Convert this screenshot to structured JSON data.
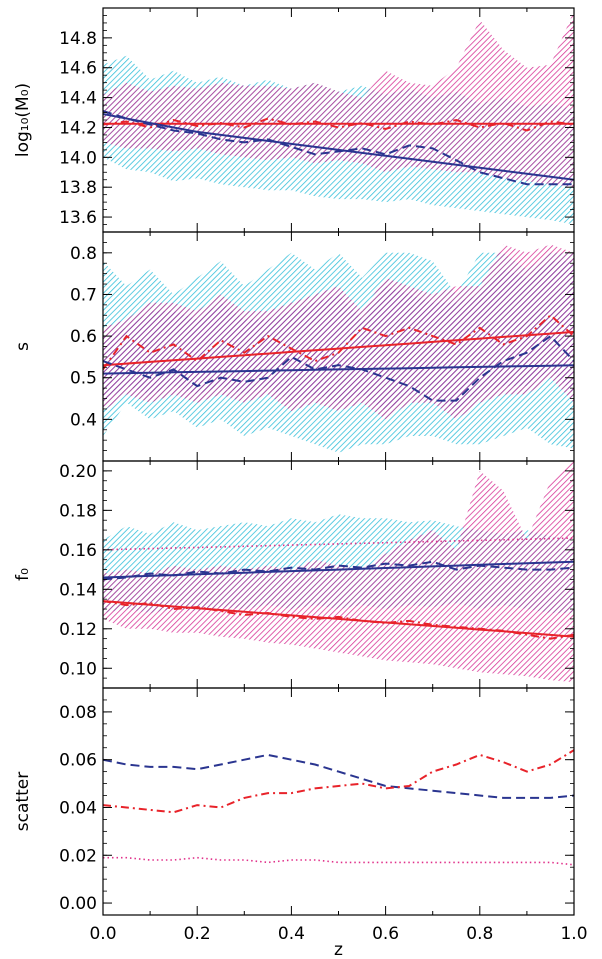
{
  "colors": {
    "cyan_band": "#1fb9d6",
    "magenta_band": "#d4218c",
    "overlap": "#8a3aa0",
    "blue_line": "#2a3590",
    "red_line": "#e8232a",
    "pink_dotted": "#e0308a"
  },
  "chart_data": [
    {
      "type": "area",
      "ylabel": "log₁₀(M₀)",
      "xlim": [
        0.0,
        1.0
      ],
      "ylim": [
        13.5,
        15.0
      ],
      "yticks": [
        "13.6",
        "13.8",
        "14.0",
        "14.2",
        "14.4",
        "14.6",
        "14.8"
      ],
      "x": [
        0.0,
        0.05,
        0.1,
        0.15,
        0.2,
        0.25,
        0.3,
        0.35,
        0.4,
        0.45,
        0.5,
        0.55,
        0.6,
        0.65,
        0.7,
        0.75,
        0.8,
        0.85,
        0.9,
        0.95,
        1.0
      ],
      "bands": [
        {
          "color": "cyan",
          "upper": [
            14.62,
            14.68,
            14.52,
            14.58,
            14.5,
            14.54,
            14.48,
            14.52,
            14.46,
            14.5,
            14.44,
            14.48,
            14.42,
            14.46,
            14.4,
            14.44,
            14.36,
            14.4,
            14.34,
            14.36,
            14.32
          ],
          "lower": [
            14.0,
            13.92,
            13.9,
            13.84,
            13.86,
            13.82,
            13.8,
            13.78,
            13.78,
            13.74,
            13.72,
            13.72,
            13.7,
            13.72,
            13.68,
            13.66,
            13.64,
            13.62,
            13.6,
            13.58,
            13.55
          ]
        },
        {
          "color": "magenta",
          "upper": [
            14.42,
            14.5,
            14.44,
            14.48,
            14.46,
            14.5,
            14.48,
            14.48,
            14.46,
            14.5,
            14.44,
            14.4,
            14.58,
            14.5,
            14.48,
            14.6,
            14.92,
            14.72,
            14.6,
            14.62,
            14.98
          ],
          "lower": [
            14.1,
            14.06,
            14.06,
            14.04,
            14.06,
            14.02,
            14.0,
            13.98,
            14.0,
            13.96,
            13.98,
            13.96,
            13.9,
            13.94,
            13.92,
            13.9,
            13.9,
            13.86,
            13.84,
            13.82,
            13.8
          ]
        }
      ],
      "series": [
        {
          "style": "red-solid",
          "values": [
            14.225,
            14.225,
            14.225,
            14.225,
            14.225,
            14.225,
            14.225,
            14.225,
            14.225,
            14.225,
            14.225,
            14.225,
            14.225,
            14.225,
            14.225,
            14.225,
            14.225,
            14.225,
            14.225,
            14.225,
            14.225
          ]
        },
        {
          "style": "red-dashdot",
          "values": [
            14.22,
            14.24,
            14.2,
            14.25,
            14.21,
            14.23,
            14.2,
            14.26,
            14.22,
            14.24,
            14.2,
            14.23,
            14.19,
            14.24,
            14.22,
            14.25,
            14.2,
            14.23,
            14.18,
            14.24,
            14.22
          ]
        },
        {
          "style": "blue-dashed",
          "values": [
            14.31,
            14.26,
            14.22,
            14.18,
            14.16,
            14.12,
            14.1,
            14.12,
            14.07,
            14.02,
            14.04,
            14.06,
            14.02,
            14.08,
            14.06,
            13.98,
            13.9,
            13.86,
            13.82,
            13.82,
            13.82
          ]
        },
        {
          "style": "blue-solid",
          "values": [
            14.29,
            14.26,
            14.23,
            14.2,
            14.17,
            14.15,
            14.13,
            14.11,
            14.09,
            14.07,
            14.05,
            14.03,
            14.01,
            13.99,
            13.97,
            13.95,
            13.93,
            13.91,
            13.89,
            13.87,
            13.85
          ]
        }
      ]
    },
    {
      "type": "area",
      "ylabel": "s",
      "xlim": [
        0.0,
        1.0
      ],
      "ylim": [
        0.3,
        0.85
      ],
      "yticks": [
        "0.4",
        "0.5",
        "0.6",
        "0.7",
        "0.8"
      ],
      "x": [
        0.0,
        0.05,
        0.1,
        0.15,
        0.2,
        0.25,
        0.3,
        0.35,
        0.4,
        0.45,
        0.5,
        0.55,
        0.6,
        0.65,
        0.7,
        0.75,
        0.8,
        0.85,
        0.9,
        0.95,
        1.0
      ],
      "bands": [
        {
          "color": "cyan",
          "upper": [
            0.78,
            0.72,
            0.76,
            0.7,
            0.74,
            0.78,
            0.72,
            0.76,
            0.8,
            0.76,
            0.8,
            0.74,
            0.8,
            0.8,
            0.78,
            0.7,
            0.8,
            0.8,
            0.76,
            0.8,
            0.8
          ],
          "lower": [
            0.36,
            0.44,
            0.4,
            0.42,
            0.38,
            0.4,
            0.36,
            0.38,
            0.36,
            0.34,
            0.32,
            0.34,
            0.34,
            0.36,
            0.36,
            0.34,
            0.34,
            0.36,
            0.38,
            0.34,
            0.33
          ]
        },
        {
          "color": "magenta",
          "upper": [
            0.62,
            0.64,
            0.68,
            0.68,
            0.66,
            0.7,
            0.66,
            0.66,
            0.68,
            0.7,
            0.72,
            0.66,
            0.74,
            0.72,
            0.7,
            0.72,
            0.72,
            0.82,
            0.8,
            0.82,
            0.8
          ],
          "lower": [
            0.42,
            0.46,
            0.44,
            0.46,
            0.44,
            0.46,
            0.44,
            0.46,
            0.42,
            0.44,
            0.42,
            0.44,
            0.4,
            0.44,
            0.44,
            0.4,
            0.44,
            0.46,
            0.46,
            0.5,
            0.44
          ]
        },
        {
          "color": "overlap",
          "upper": [
            0.6,
            0.62,
            0.66,
            0.66,
            0.64,
            0.68,
            0.64,
            0.64,
            0.66,
            0.68,
            0.7,
            0.64,
            0.72,
            0.7,
            0.68,
            0.68,
            0.7,
            0.76,
            0.74,
            0.78,
            0.78
          ],
          "lower": [
            0.44,
            0.48,
            0.46,
            0.48,
            0.46,
            0.48,
            0.46,
            0.48,
            0.44,
            0.46,
            0.44,
            0.46,
            0.42,
            0.46,
            0.46,
            0.42,
            0.46,
            0.48,
            0.48,
            0.52,
            0.46
          ]
        }
      ],
      "series": [
        {
          "style": "red-solid",
          "values": [
            0.53,
            0.534,
            0.538,
            0.542,
            0.546,
            0.55,
            0.554,
            0.558,
            0.562,
            0.566,
            0.57,
            0.574,
            0.578,
            0.582,
            0.586,
            0.59,
            0.594,
            0.598,
            0.602,
            0.606,
            0.61
          ]
        },
        {
          "style": "red-dashdot",
          "values": [
            0.52,
            0.6,
            0.56,
            0.58,
            0.54,
            0.59,
            0.56,
            0.6,
            0.57,
            0.54,
            0.56,
            0.62,
            0.6,
            0.62,
            0.6,
            0.58,
            0.62,
            0.58,
            0.6,
            0.65,
            0.6
          ]
        },
        {
          "style": "blue-dashed",
          "values": [
            0.54,
            0.52,
            0.5,
            0.52,
            0.48,
            0.5,
            0.49,
            0.5,
            0.55,
            0.52,
            0.53,
            0.52,
            0.5,
            0.48,
            0.445,
            0.445,
            0.5,
            0.54,
            0.56,
            0.6,
            0.54
          ]
        },
        {
          "style": "blue-solid",
          "values": [
            0.51,
            0.511,
            0.512,
            0.513,
            0.514,
            0.515,
            0.516,
            0.517,
            0.518,
            0.519,
            0.52,
            0.521,
            0.522,
            0.523,
            0.524,
            0.525,
            0.526,
            0.527,
            0.528,
            0.529,
            0.53
          ]
        }
      ]
    },
    {
      "type": "area",
      "ylabel": "f₀",
      "xlim": [
        0.0,
        1.0
      ],
      "ylim": [
        0.09,
        0.205
      ],
      "yticks": [
        "0.10",
        "0.12",
        "0.14",
        "0.16",
        "0.18",
        "0.20"
      ],
      "x": [
        0.0,
        0.05,
        0.1,
        0.15,
        0.2,
        0.25,
        0.3,
        0.35,
        0.4,
        0.45,
        0.5,
        0.55,
        0.6,
        0.65,
        0.7,
        0.75,
        0.8,
        0.85,
        0.9,
        0.95,
        1.0
      ],
      "bands": [
        {
          "color": "cyan",
          "upper": [
            0.165,
            0.172,
            0.168,
            0.174,
            0.17,
            0.172,
            0.174,
            0.172,
            0.176,
            0.174,
            0.178,
            0.176,
            0.176,
            0.174,
            0.175,
            0.172,
            0.17,
            0.168,
            0.17,
            0.167,
            0.165
          ],
          "lower": [
            0.128,
            0.13,
            0.128,
            0.13,
            0.129,
            0.131,
            0.13,
            0.132,
            0.13,
            0.132,
            0.13,
            0.132,
            0.13,
            0.132,
            0.131,
            0.133,
            0.13,
            0.132,
            0.13,
            0.128,
            0.128
          ]
        },
        {
          "color": "magenta",
          "upper": [
            0.148,
            0.15,
            0.148,
            0.152,
            0.15,
            0.152,
            0.15,
            0.152,
            0.15,
            0.155,
            0.152,
            0.15,
            0.158,
            0.165,
            0.17,
            0.16,
            0.2,
            0.19,
            0.165,
            0.195,
            0.205
          ],
          "lower": [
            0.125,
            0.12,
            0.12,
            0.118,
            0.118,
            0.116,
            0.115,
            0.113,
            0.112,
            0.11,
            0.108,
            0.106,
            0.104,
            0.103,
            0.102,
            0.1,
            0.098,
            0.097,
            0.096,
            0.094,
            0.093
          ]
        }
      ],
      "series": [
        {
          "style": "pink-dotted",
          "values": [
            0.16,
            0.1603,
            0.1606,
            0.1609,
            0.1612,
            0.1615,
            0.1618,
            0.1621,
            0.1624,
            0.1627,
            0.163,
            0.1633,
            0.1636,
            0.1639,
            0.1642,
            0.1645,
            0.1648,
            0.1651,
            0.1654,
            0.1657,
            0.166
          ]
        },
        {
          "style": "red-dashdot",
          "values": [
            0.134,
            0.132,
            0.133,
            0.13,
            0.131,
            0.129,
            0.127,
            0.128,
            0.126,
            0.125,
            0.126,
            0.124,
            0.123,
            0.124,
            0.122,
            0.121,
            0.12,
            0.119,
            0.117,
            0.115,
            0.117
          ]
        },
        {
          "style": "red-solid",
          "values": [
            0.134,
            0.1331,
            0.1322,
            0.1313,
            0.1304,
            0.1295,
            0.1286,
            0.1277,
            0.1268,
            0.1259,
            0.125,
            0.1241,
            0.1232,
            0.1223,
            0.1214,
            0.1205,
            0.1196,
            0.1187,
            0.1178,
            0.1169,
            0.116
          ]
        },
        {
          "style": "blue-dashed",
          "values": [
            0.145,
            0.146,
            0.148,
            0.147,
            0.149,
            0.148,
            0.15,
            0.149,
            0.151,
            0.15,
            0.152,
            0.151,
            0.153,
            0.152,
            0.154,
            0.15,
            0.152,
            0.151,
            0.15,
            0.15,
            0.151
          ]
        },
        {
          "style": "blue-solid",
          "values": [
            0.146,
            0.1464,
            0.1468,
            0.1472,
            0.1476,
            0.148,
            0.1484,
            0.1488,
            0.1492,
            0.1496,
            0.15,
            0.1504,
            0.1508,
            0.1512,
            0.1516,
            0.152,
            0.1524,
            0.1528,
            0.1532,
            0.1536,
            0.154
          ]
        }
      ]
    },
    {
      "type": "line",
      "ylabel": "scatter",
      "xlabel": "z",
      "xlim": [
        0.0,
        1.0
      ],
      "ylim": [
        -0.005,
        0.09
      ],
      "yticks": [
        "0.00",
        "0.02",
        "0.04",
        "0.06",
        "0.08"
      ],
      "xticks": [
        "0.0",
        "0.2",
        "0.4",
        "0.6",
        "0.8",
        "1.0"
      ],
      "x": [
        0.0,
        0.05,
        0.1,
        0.15,
        0.2,
        0.25,
        0.3,
        0.35,
        0.4,
        0.45,
        0.5,
        0.55,
        0.6,
        0.65,
        0.7,
        0.75,
        0.8,
        0.85,
        0.9,
        0.95,
        1.0
      ],
      "bands": [],
      "series": [
        {
          "style": "blue-dashed",
          "values": [
            0.06,
            0.058,
            0.057,
            0.057,
            0.056,
            0.058,
            0.06,
            0.062,
            0.06,
            0.058,
            0.055,
            0.052,
            0.049,
            0.048,
            0.047,
            0.046,
            0.045,
            0.044,
            0.044,
            0.044,
            0.045
          ]
        },
        {
          "style": "red-dashdot",
          "values": [
            0.041,
            0.04,
            0.039,
            0.038,
            0.041,
            0.04,
            0.044,
            0.046,
            0.046,
            0.048,
            0.049,
            0.05,
            0.048,
            0.049,
            0.055,
            0.058,
            0.062,
            0.059,
            0.055,
            0.058,
            0.064
          ]
        },
        {
          "style": "pink-dotted",
          "values": [
            0.019,
            0.019,
            0.018,
            0.018,
            0.019,
            0.018,
            0.018,
            0.017,
            0.018,
            0.018,
            0.017,
            0.017,
            0.017,
            0.017,
            0.017,
            0.017,
            0.017,
            0.017,
            0.017,
            0.017,
            0.016
          ]
        }
      ]
    }
  ]
}
